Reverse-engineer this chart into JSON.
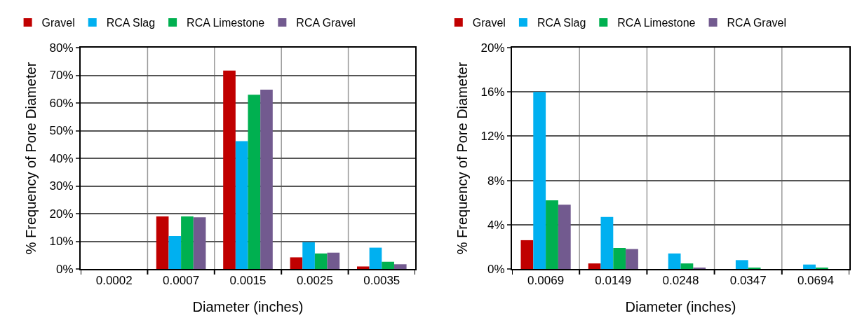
{
  "chart_data": [
    {
      "type": "bar",
      "categories": [
        "0.0002",
        "0.0007",
        "0.0015",
        "0.0025",
        "0.0035"
      ],
      "xlabel": "Diameter (inches)",
      "ylabel": "% Frequency of Pore Diameter",
      "series": [
        {
          "name": "Gravel",
          "color": "#c00000",
          "values": [
            null,
            19.0,
            71.7,
            4.2,
            0.9
          ]
        },
        {
          "name": "RCA Slag",
          "color": "#00b0f0",
          "values": [
            null,
            11.9,
            46.2,
            9.7,
            7.7
          ]
        },
        {
          "name": "RCA Limestone",
          "color": "#00b050",
          "values": [
            null,
            19.0,
            63.0,
            5.6,
            2.6
          ]
        },
        {
          "name": "RCA Gravel",
          "color": "#725a8f",
          "values": [
            null,
            18.7,
            64.8,
            5.9,
            1.7
          ]
        }
      ],
      "ylim": [
        0,
        80
      ],
      "yticks": [
        {
          "value": 0,
          "label": "0%"
        },
        {
          "value": 10,
          "label": "10%"
        },
        {
          "value": 20,
          "label": "20%"
        },
        {
          "value": 30,
          "label": "30%"
        },
        {
          "value": 40,
          "label": "40%"
        },
        {
          "value": 50,
          "label": "50%"
        },
        {
          "value": 60,
          "label": "60%"
        },
        {
          "value": 70,
          "label": "70%"
        },
        {
          "value": 80,
          "label": "80%"
        }
      ],
      "grid": true,
      "legend": "top left"
    },
    {
      "type": "bar",
      "categories": [
        "0.0069",
        "0.0149",
        "0.0248",
        "0.0347",
        "0.0694"
      ],
      "xlabel": "Diameter (inches)",
      "ylabel": "% Frequency of Pore Diameter",
      "series": [
        {
          "name": "Gravel",
          "color": "#c00000",
          "values": [
            2.6,
            0.5,
            null,
            null,
            null
          ]
        },
        {
          "name": "RCA Slag",
          "color": "#00b0f0",
          "values": [
            16.0,
            4.7,
            1.4,
            0.8,
            0.4
          ]
        },
        {
          "name": "RCA Limestone",
          "color": "#00b050",
          "values": [
            6.2,
            1.9,
            0.5,
            0.1,
            0.1
          ]
        },
        {
          "name": "RCA Gravel",
          "color": "#725a8f",
          "values": [
            5.8,
            1.8,
            0.1,
            null,
            null
          ]
        }
      ],
      "ylim": [
        0,
        20
      ],
      "yticks": [
        {
          "value": 0,
          "label": "0%"
        },
        {
          "value": 4,
          "label": "4%"
        },
        {
          "value": 8,
          "label": "8%"
        },
        {
          "value": 12,
          "label": "12%"
        },
        {
          "value": 16,
          "label": "16%"
        },
        {
          "value": 20,
          "label": "20%"
        }
      ],
      "grid": true,
      "legend": "top left"
    }
  ]
}
